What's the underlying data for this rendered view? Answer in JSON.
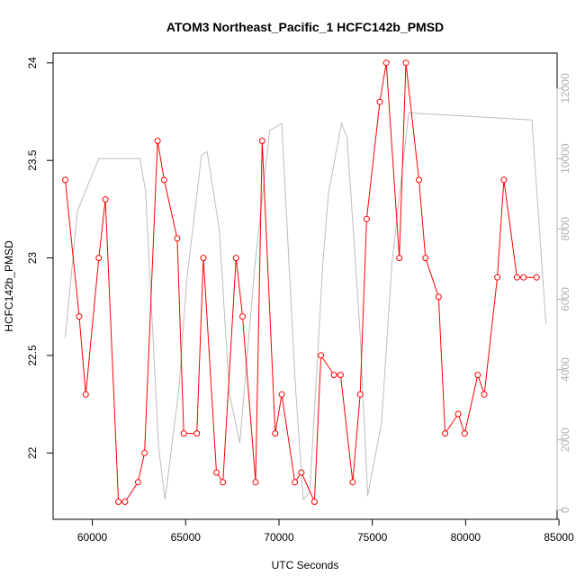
{
  "chart_data": {
    "type": "line",
    "title": "ATOM3 Northeast_Pacific_1 HCFC142b_PMSD",
    "xlabel": "UTC Seconds",
    "ylabel": "HCFC142b_PMSD",
    "xlim": [
      57900,
      84900
    ],
    "ylim": [
      21.66,
      24.05
    ],
    "y2lim": [
      -260,
      13000
    ],
    "x_ticks": [
      60000,
      65000,
      70000,
      75000,
      80000,
      85000
    ],
    "y_ticks": [
      22.0,
      22.5,
      23.0,
      23.5,
      24.0
    ],
    "y2_ticks": [
      0,
      2000,
      4000,
      6000,
      8000,
      10000,
      12000
    ],
    "grid": false,
    "colors": {
      "primary": "#ff0000",
      "secondary": "#bebebe",
      "axis": "#000000",
      "secondary_axis": "#b0b0b0"
    },
    "series": [
      {
        "axis": "left",
        "style": "line+markers",
        "x": [
          58550,
          59300,
          59650,
          60350,
          60700,
          61400,
          61750,
          62450,
          62800,
          63500,
          63850,
          64550,
          64900,
          65600,
          65950,
          66650,
          67000,
          67700,
          68050,
          68750,
          69100,
          69800,
          70150,
          70850,
          71200,
          71900,
          72250,
          72950,
          73300,
          73950,
          74350,
          74700,
          75400,
          75750,
          76450,
          76800,
          77500,
          77850,
          78550,
          78900,
          79600,
          79950,
          80650,
          81000,
          81700,
          82050,
          82750,
          83100,
          83800
        ],
        "y": [
          23.4,
          22.7,
          22.3,
          23.0,
          23.3,
          21.75,
          21.75,
          21.85,
          22.0,
          23.6,
          23.4,
          23.1,
          22.1,
          22.1,
          23.0,
          21.9,
          21.85,
          23.0,
          22.7,
          21.85,
          23.6,
          22.1,
          22.3,
          21.85,
          21.9,
          21.75,
          22.5,
          22.4,
          22.4,
          21.85,
          22.3,
          23.2,
          23.8,
          24.0,
          23.0,
          24.0,
          23.4,
          23.0,
          22.8,
          22.1,
          22.2,
          22.1,
          22.4,
          22.3,
          22.9,
          23.4,
          22.9,
          22.9,
          22.9
        ]
      },
      {
        "axis": "right",
        "style": "line",
        "x": [
          58550,
          59200,
          59650,
          60350,
          62550,
          62850,
          63550,
          63900,
          64650,
          65050,
          65850,
          66150,
          66800,
          67350,
          67900,
          68700,
          69500,
          70150,
          70850,
          71300,
          71650,
          72350,
          72650,
          73350,
          73650,
          74350,
          74750,
          75500,
          76050,
          76950,
          83550,
          84300
        ],
        "y": [
          4900,
          8500,
          9100,
          10000,
          10000,
          9100,
          1800,
          300,
          3500,
          6500,
          10100,
          10200,
          8000,
          3300,
          1900,
          6900,
          10800,
          11000,
          3800,
          300,
          500,
          7000,
          9000,
          11000,
          10600,
          5000,
          400,
          2500,
          7000,
          11300,
          11100,
          5300
        ]
      }
    ]
  }
}
